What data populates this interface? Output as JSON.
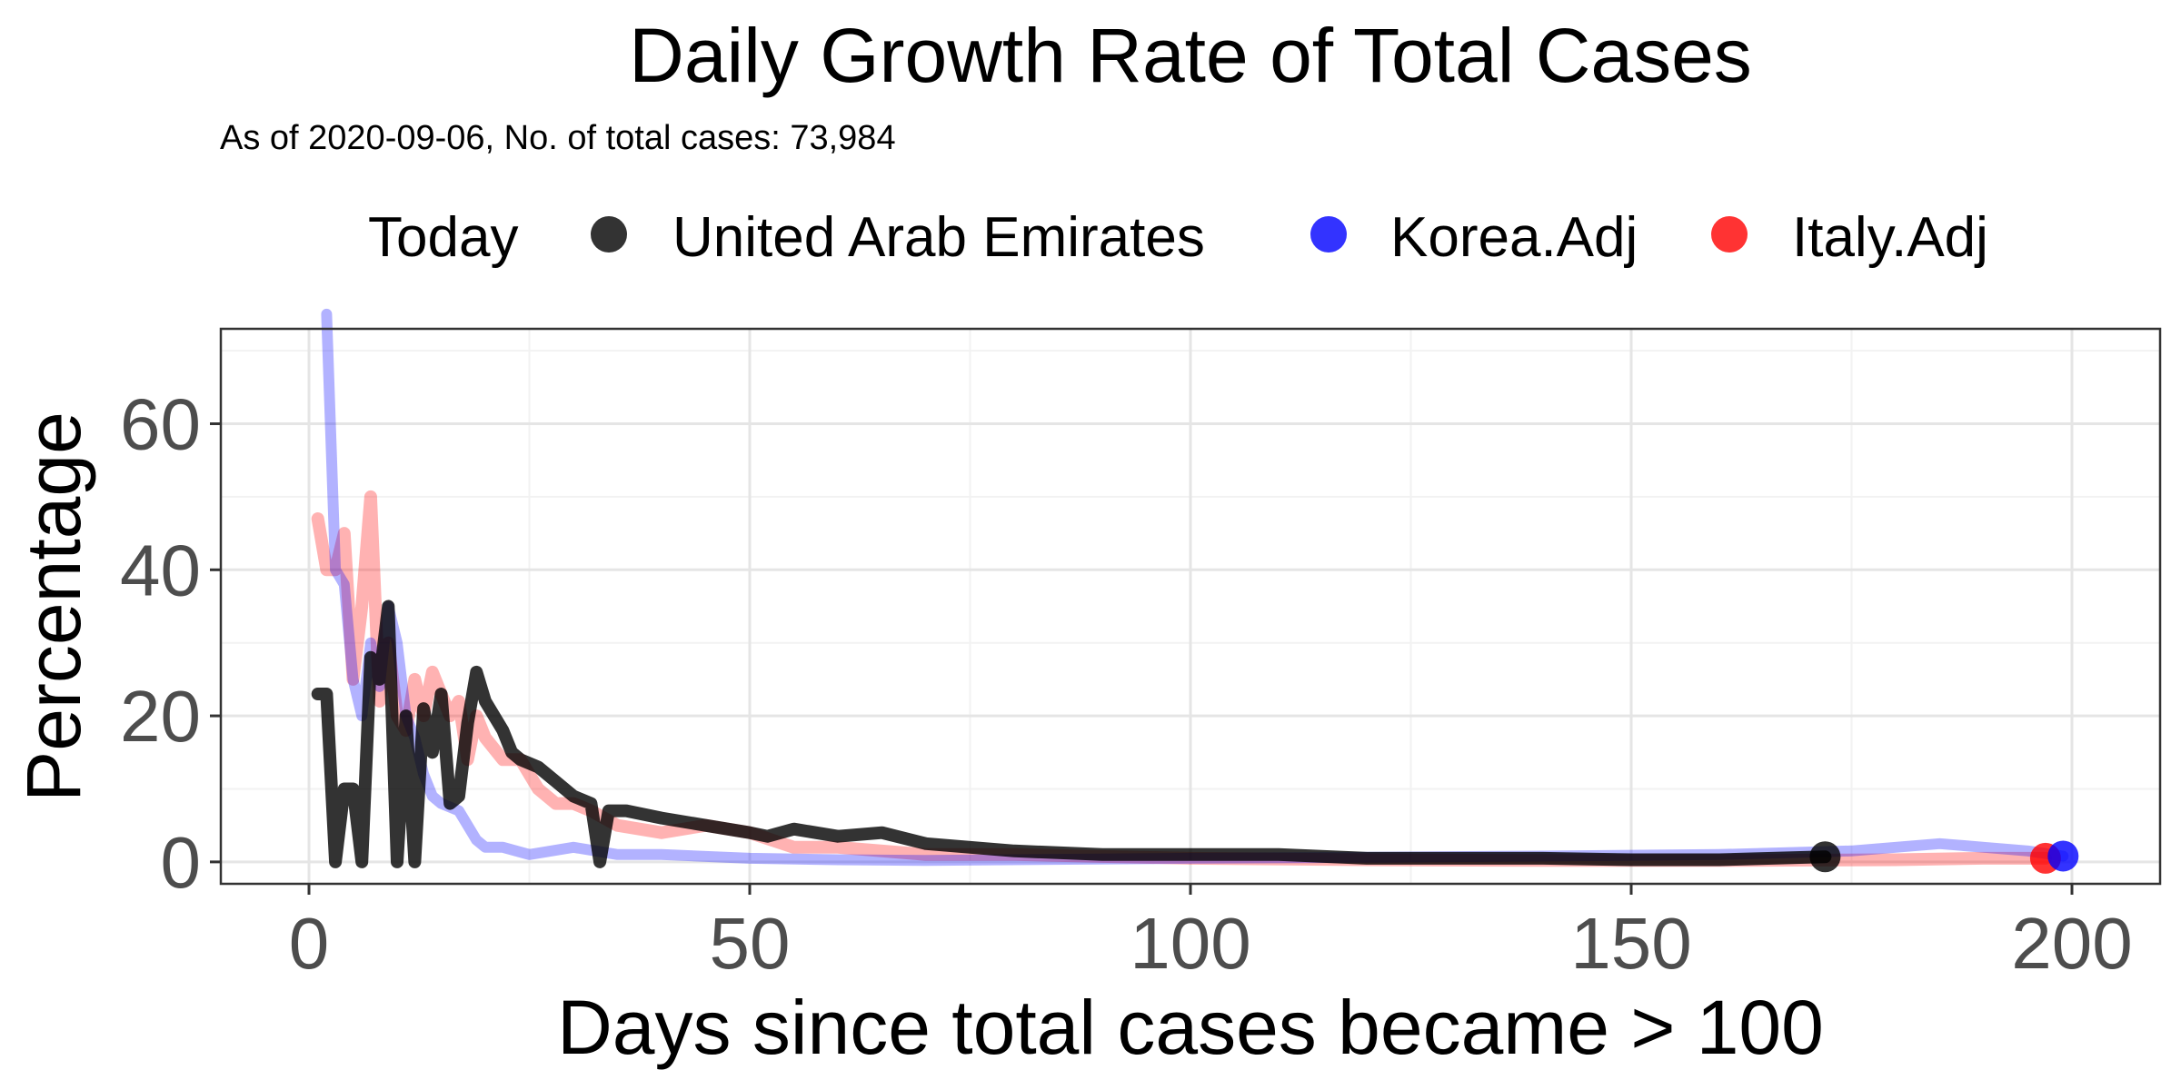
{
  "chart_data": {
    "type": "line",
    "title": "Daily Growth Rate of Total Cases",
    "subtitle": "As of 2020-09-06, No. of total cases: 73,984",
    "xlabel": "Days since total cases became > 100",
    "ylabel": "Percentage",
    "xlim": [
      -10,
      210
    ],
    "ylim": [
      -3,
      73
    ],
    "x_ticks": [
      0,
      50,
      100,
      150,
      200
    ],
    "y_ticks": [
      0,
      20,
      40,
      60
    ],
    "grid": true,
    "legend": {
      "title": "Today",
      "position": "top",
      "entries": [
        {
          "name": "United Arab Emirates",
          "color": "#000000"
        },
        {
          "name": "Korea.Adj",
          "color": "#0000ff"
        },
        {
          "name": "Italy.Adj",
          "color": "#ff0000"
        }
      ]
    },
    "series": [
      {
        "name": "Italy.Adj",
        "color": "#ff0000",
        "points": [
          [
            1,
            47
          ],
          [
            2,
            40
          ],
          [
            3,
            40
          ],
          [
            4,
            45
          ],
          [
            5,
            25
          ],
          [
            6,
            35
          ],
          [
            7,
            50
          ],
          [
            8,
            22
          ],
          [
            9,
            30
          ],
          [
            10,
            20
          ],
          [
            11,
            18
          ],
          [
            12,
            25
          ],
          [
            13,
            20
          ],
          [
            14,
            26
          ],
          [
            15,
            23
          ],
          [
            16,
            20
          ],
          [
            17,
            22
          ],
          [
            18,
            14
          ],
          [
            19,
            20
          ],
          [
            20,
            17
          ],
          [
            22,
            14
          ],
          [
            24,
            14
          ],
          [
            26,
            10
          ],
          [
            28,
            8
          ],
          [
            30,
            8
          ],
          [
            32,
            7
          ],
          [
            35,
            5
          ],
          [
            40,
            4
          ],
          [
            45,
            5
          ],
          [
            50,
            4
          ],
          [
            55,
            2
          ],
          [
            60,
            2
          ],
          [
            70,
            1
          ],
          [
            80,
            1
          ],
          [
            100,
            0.5
          ],
          [
            120,
            0.3
          ],
          [
            140,
            0.2
          ],
          [
            160,
            0.2
          ],
          [
            180,
            0.3
          ],
          [
            190,
            0.5
          ],
          [
            197,
            0.5
          ]
        ]
      },
      {
        "name": "Korea.Adj",
        "color": "#0000ff",
        "points": [
          [
            2,
            75
          ],
          [
            3,
            40
          ],
          [
            4,
            38
          ],
          [
            5,
            25
          ],
          [
            6,
            20
          ],
          [
            7,
            30
          ],
          [
            8,
            24
          ],
          [
            9,
            35
          ],
          [
            10,
            30
          ],
          [
            11,
            20
          ],
          [
            12,
            17
          ],
          [
            13,
            12
          ],
          [
            14,
            9
          ],
          [
            15,
            8
          ],
          [
            17,
            7
          ],
          [
            19,
            3
          ],
          [
            20,
            2
          ],
          [
            22,
            2
          ],
          [
            25,
            1
          ],
          [
            30,
            2
          ],
          [
            35,
            1
          ],
          [
            40,
            1
          ],
          [
            50,
            0.5
          ],
          [
            60,
            0.3
          ],
          [
            70,
            0.2
          ],
          [
            100,
            0.5
          ],
          [
            140,
            0.8
          ],
          [
            160,
            1
          ],
          [
            175,
            1.5
          ],
          [
            180,
            2
          ],
          [
            185,
            2.5
          ],
          [
            190,
            2
          ],
          [
            195,
            1.5
          ],
          [
            199,
            0.8
          ]
        ]
      },
      {
        "name": "United Arab Emirates",
        "color": "#000000",
        "points": [
          [
            1,
            23
          ],
          [
            2,
            23
          ],
          [
            3,
            0
          ],
          [
            4,
            10
          ],
          [
            5,
            10
          ],
          [
            6,
            0
          ],
          [
            7,
            28
          ],
          [
            8,
            25
          ],
          [
            9,
            35
          ],
          [
            10,
            0
          ],
          [
            11,
            20
          ],
          [
            12,
            0
          ],
          [
            13,
            21
          ],
          [
            14,
            15
          ],
          [
            15,
            23
          ],
          [
            16,
            8
          ],
          [
            17,
            9
          ],
          [
            18,
            19
          ],
          [
            19,
            26
          ],
          [
            20,
            22
          ],
          [
            21,
            20
          ],
          [
            22,
            18
          ],
          [
            23,
            15
          ],
          [
            24,
            14
          ],
          [
            26,
            13
          ],
          [
            28,
            11
          ],
          [
            30,
            9
          ],
          [
            32,
            8
          ],
          [
            33,
            0
          ],
          [
            34,
            7
          ],
          [
            36,
            7
          ],
          [
            40,
            6
          ],
          [
            45,
            5
          ],
          [
            50,
            4
          ],
          [
            52,
            3.5
          ],
          [
            55,
            4.5
          ],
          [
            60,
            3.5
          ],
          [
            65,
            4
          ],
          [
            70,
            2.5
          ],
          [
            75,
            2
          ],
          [
            80,
            1.5
          ],
          [
            90,
            1
          ],
          [
            100,
            1
          ],
          [
            110,
            1
          ],
          [
            120,
            0.5
          ],
          [
            130,
            0.5
          ],
          [
            140,
            0.5
          ],
          [
            150,
            0.3
          ],
          [
            160,
            0.3
          ],
          [
            172,
            0.7
          ]
        ]
      }
    ],
    "today_points": [
      {
        "name": "United Arab Emirates",
        "x": 172,
        "y": 0.7,
        "color": "#000000"
      },
      {
        "name": "Italy.Adj",
        "x": 197,
        "y": 0.5,
        "color": "#ff0000"
      },
      {
        "name": "Korea.Adj",
        "x": 199,
        "y": 0.8,
        "color": "#0000ff"
      }
    ]
  }
}
